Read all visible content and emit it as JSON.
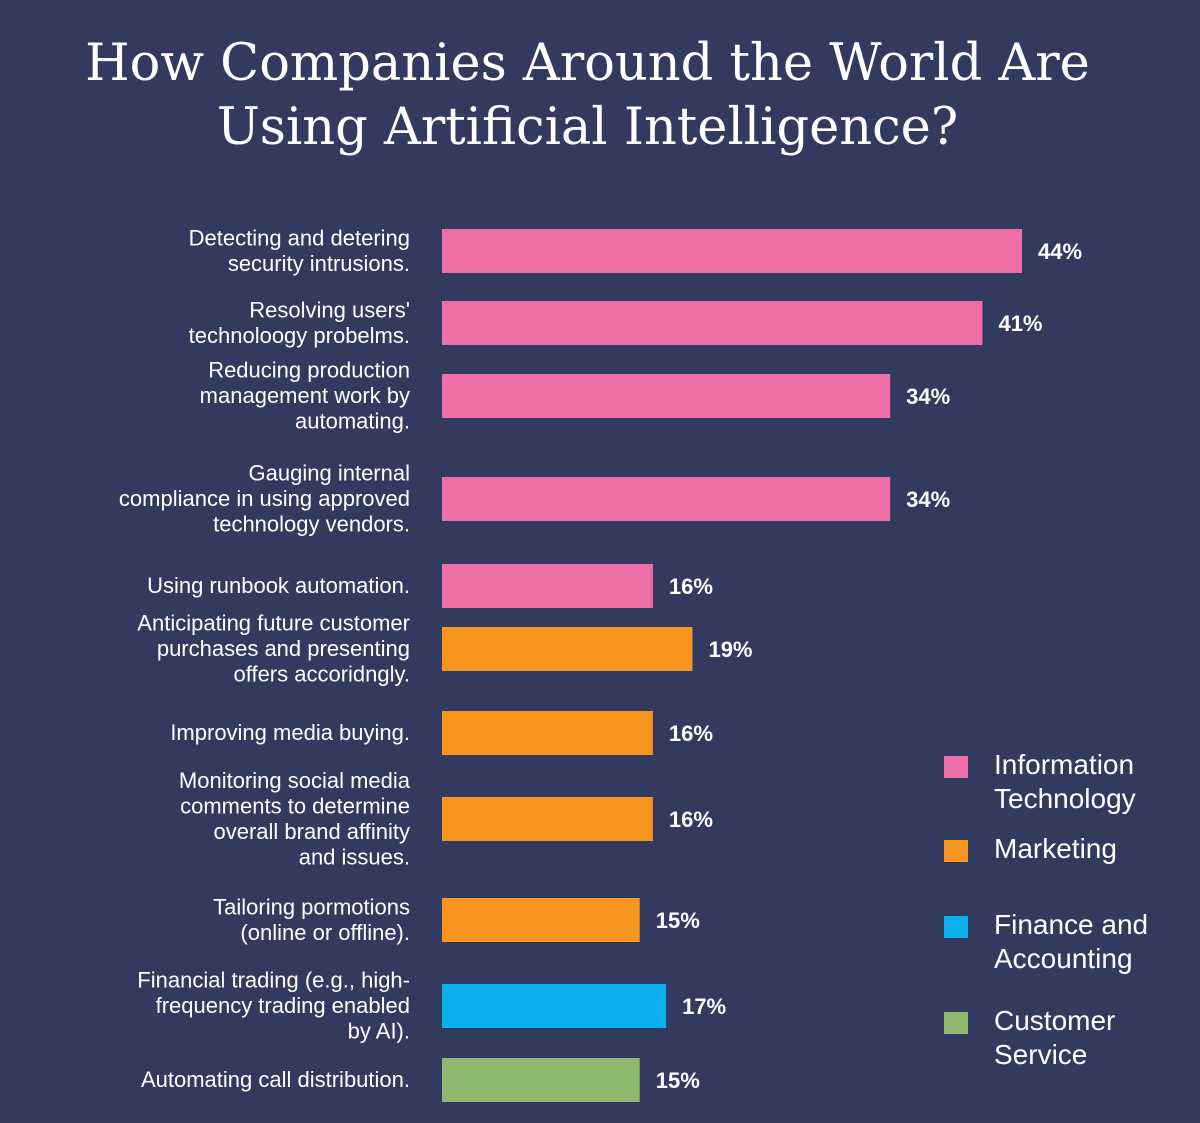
{
  "title_line1": "How Companies Around the World Are",
  "title_line2": "Using Artificial Intelligence?",
  "legend": [
    {
      "label": "Information Technology",
      "lines": [
        "Information",
        "Technology"
      ],
      "color": "#ee6fa8"
    },
    {
      "label": "Marketing",
      "lines": [
        "Marketing"
      ],
      "color": "#f7951e"
    },
    {
      "label": "Finance and Accounting",
      "lines": [
        "Finance and",
        "Accounting"
      ],
      "color": "#0ab0ee"
    },
    {
      "label": "Customer Service",
      "lines": [
        "Customer",
        "Service"
      ],
      "color": "#8fb86e"
    }
  ],
  "chart_data": {
    "type": "bar",
    "orientation": "horizontal",
    "title": "How Companies Around the World Are Using Artificial Intelligence?",
    "xlabel": "",
    "ylabel": "",
    "value_format": "percent",
    "grid": false,
    "legend_position": "right",
    "categories": [
      "Detecting and detering security intrusions.",
      "Resolving users' technoloogy probelms.",
      "Reducing production management work by automating.",
      "Gauging internal compliance in using approved technology vendors.",
      "Using runbook automation.",
      "Anticipating future customer purchases and presenting offers accoridngly.",
      "Improving media buying.",
      "Monitoring social media comments to determine overall brand affinity and issues.",
      "Tailoring pormotions (online or offline).",
      "Financial trading (e.g., high-frequency trading enabled by AI).",
      "Automating call distribution."
    ],
    "category_lines": [
      [
        "Detecting and detering",
        "security intrusions."
      ],
      [
        "Resolving users'",
        "technoloogy probelms."
      ],
      [
        "Reducing production",
        "management work by",
        "automating."
      ],
      [
        "Gauging internal",
        "compliance in using approved",
        "technology vendors."
      ],
      [
        "Using runbook automation."
      ],
      [
        "Anticipating future customer",
        "purchases and presenting",
        "offers accoridngly."
      ],
      [
        "Improving media buying."
      ],
      [
        "Monitoring social media",
        "comments to determine",
        "overall brand affinity",
        "and issues."
      ],
      [
        "Tailoring pormotions",
        "(online or offline)."
      ],
      [
        "Financial trading (e.g., high-",
        "frequency trading enabled",
        "by AI)."
      ],
      [
        "Automating call distribution."
      ]
    ],
    "values": [
      44,
      41,
      34,
      34,
      16,
      19,
      16,
      16,
      15,
      17,
      15
    ],
    "value_labels": [
      "44%",
      "41%",
      "34%",
      "34%",
      "16%",
      "19%",
      "16%",
      "16%",
      "15%",
      "17%",
      "15%"
    ],
    "groups": [
      "Information Technology",
      "Information Technology",
      "Information Technology",
      "Information Technology",
      "Information Technology",
      "Marketing",
      "Marketing",
      "Marketing",
      "Marketing",
      "Finance and Accounting",
      "Customer Service"
    ]
  }
}
